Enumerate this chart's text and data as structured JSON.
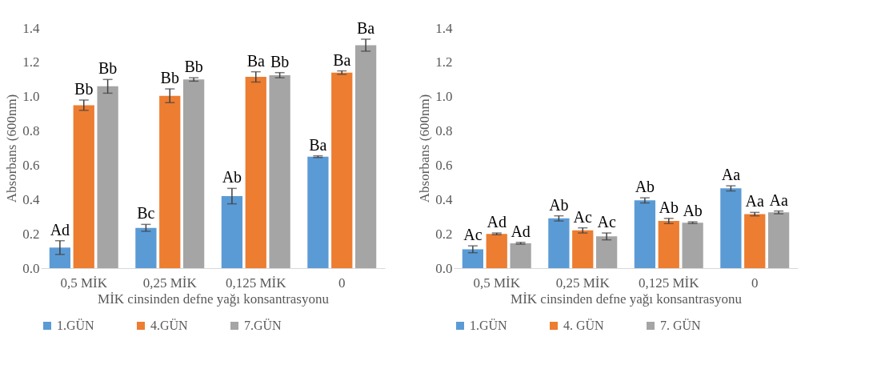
{
  "chart_data": [
    {
      "type": "bar",
      "xlabel": "MİK cinsinden defne yağı konsantrasyonu",
      "ylabel": "Absorbans (600nm)",
      "categories": [
        "0,5 MİK",
        "0,25 MİK",
        "0,125 MİK",
        "0"
      ],
      "ylim": [
        0,
        1.4
      ],
      "yticks": [
        {
          "value": 0,
          "label": "0.0"
        },
        0.2,
        0.4,
        0.6,
        0.8,
        {
          "value": 1,
          "label": "1.0"
        },
        1.2,
        1.4
      ],
      "legend": "bottom",
      "grid": false,
      "series": [
        {
          "name": "1.GÜN",
          "color": "#5b9bd5",
          "values": [
            0.12,
            0.235,
            0.42,
            0.65
          ],
          "errors": [
            0.04,
            0.02,
            0.045,
            0.005
          ],
          "value_labels": [
            "Ad",
            "Bc",
            "Ab",
            "Ba"
          ]
        },
        {
          "name": "4.GÜN",
          "color": "#ed7d31",
          "values": [
            0.95,
            1.005,
            1.115,
            1.14
          ],
          "errors": [
            0.03,
            0.04,
            0.03,
            0.01
          ],
          "value_labels": [
            "Bb",
            "Bb",
            "Ba",
            "Ba"
          ]
        },
        {
          "name": "7.GÜN",
          "color": "#a5a5a5",
          "values": [
            1.06,
            1.1,
            1.125,
            1.3
          ],
          "errors": [
            0.04,
            0.01,
            0.015,
            0.035
          ],
          "value_labels": [
            "Bb",
            "Bb",
            "Bb",
            "Ba"
          ]
        }
      ]
    },
    {
      "type": "bar",
      "xlabel": "MİK cinsinden defne yağı konsantrasyonu",
      "ylabel": "Absorbans (600nm)",
      "categories": [
        "0,5 MİK",
        "0,25 MİK",
        "0,125 MİK",
        "0"
      ],
      "ylim": [
        0,
        1.4
      ],
      "yticks": [
        {
          "value": 0,
          "label": "0.0"
        },
        0.2,
        0.4,
        0.6,
        0.8,
        {
          "value": 1,
          "label": "1.0"
        },
        1.2,
        1.4
      ],
      "legend": "bottom",
      "grid": false,
      "series": [
        {
          "name": "1.GÜN",
          "color": "#5b9bd5",
          "values": [
            0.11,
            0.29,
            0.395,
            0.465
          ],
          "errors": [
            0.02,
            0.015,
            0.015,
            0.015
          ],
          "value_labels": [
            "Ac",
            "Ab",
            "Ab",
            "Aa"
          ]
        },
        {
          "name": "4. GÜN",
          "color": "#ed7d31",
          "values": [
            0.2,
            0.22,
            0.275,
            0.315
          ],
          "errors": [
            0.005,
            0.015,
            0.015,
            0.01
          ],
          "value_labels": [
            "Ad",
            "Ac",
            "Ab",
            "Aa"
          ]
        },
        {
          "name": "7. GÜN",
          "color": "#a5a5a5",
          "values": [
            0.145,
            0.185,
            0.265,
            0.325
          ],
          "errors": [
            0.005,
            0.02,
            0.005,
            0.008
          ],
          "value_labels": [
            "Ad",
            "Ac",
            "Ab",
            "Aa"
          ]
        }
      ]
    }
  ]
}
